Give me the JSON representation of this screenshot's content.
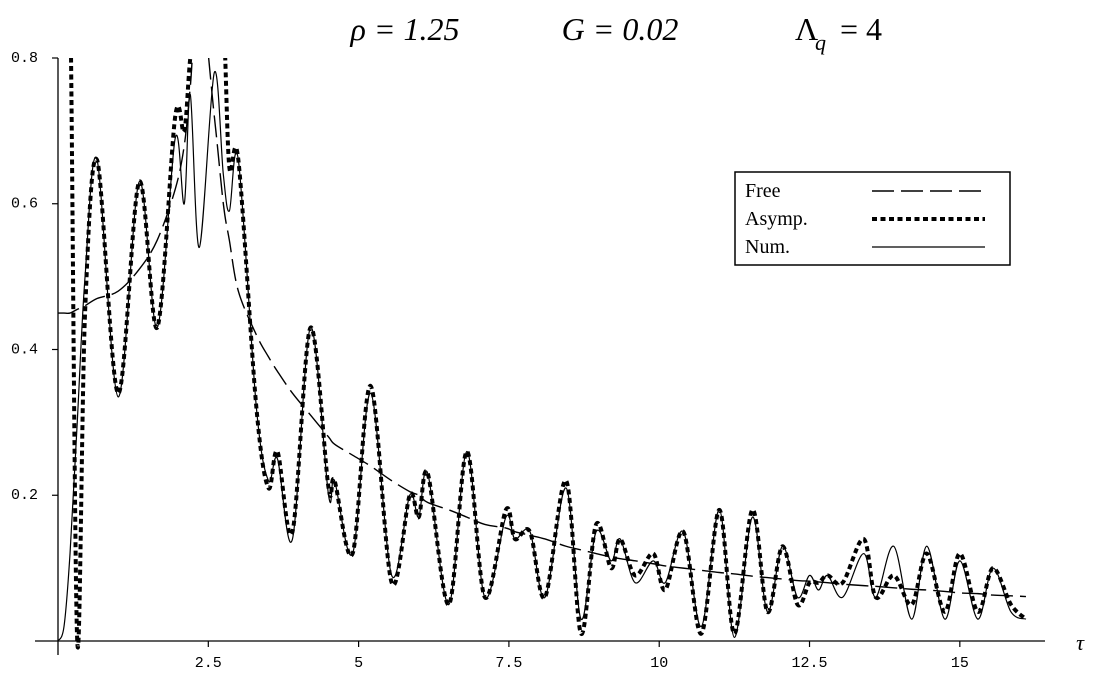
{
  "chart_data": {
    "type": "line",
    "title": {
      "rho": "ρ = 1.25",
      "G": "G = 0.02",
      "lambda": "Λ",
      "lambda_sub": "q",
      "lambda_val": "= 4"
    },
    "x_label": "τ",
    "x": [
      0,
      0.1,
      0.2,
      0.32,
      0.45,
      0.65,
      1.0,
      1.35,
      1.65,
      1.95,
      2.1,
      2.2,
      2.35,
      2.6,
      2.75,
      2.85,
      3.0,
      3.3,
      3.5,
      3.65,
      3.9,
      4.2,
      4.5,
      4.6,
      4.9,
      5.2,
      5.55,
      5.85,
      6.0,
      6.15,
      6.5,
      6.8,
      7.1,
      7.45,
      7.6,
      7.85,
      8.1,
      8.45,
      8.7,
      8.95,
      9.2,
      9.35,
      9.6,
      9.9,
      10.1,
      10.4,
      10.7,
      11.0,
      11.25,
      11.55,
      11.8,
      12.05,
      12.3,
      12.5,
      12.65,
      12.8,
      13.05,
      13.4,
      13.6,
      13.9,
      14.2,
      14.45,
      14.75,
      15.0,
      15.3,
      15.55,
      15.85,
      16.1
    ],
    "series": [
      {
        "name": "Free",
        "color": "#000000",
        "dash": "long-dash",
        "values": [
          0.45,
          0.45,
          0.45,
          0.455,
          0.46,
          0.47,
          0.48,
          0.51,
          0.55,
          0.62,
          0.68,
          0.76,
          0.9,
          0.72,
          0.6,
          0.55,
          0.48,
          0.42,
          0.39,
          0.37,
          0.34,
          0.31,
          0.28,
          0.27,
          0.255,
          0.24,
          0.22,
          0.205,
          0.2,
          0.19,
          0.18,
          0.17,
          0.16,
          0.155,
          0.15,
          0.145,
          0.14,
          0.13,
          0.125,
          0.12,
          0.115,
          0.113,
          0.11,
          0.106,
          0.103,
          0.1,
          0.097,
          0.094,
          0.092,
          0.089,
          0.087,
          0.085,
          0.083,
          0.082,
          0.081,
          0.08,
          0.078,
          0.076,
          0.075,
          0.073,
          0.071,
          0.07,
          0.068,
          0.066,
          0.065,
          0.063,
          0.062,
          0.061
        ]
      },
      {
        "name": "Asymp.",
        "color": "#000000",
        "dash": "dotted",
        "values": [
          null,
          0.9,
          0.9,
          0.0,
          0.45,
          0.66,
          0.34,
          0.63,
          0.43,
          0.72,
          0.7,
          0.8,
          0.9,
          0.85,
          0.85,
          0.65,
          0.66,
          0.32,
          0.21,
          0.26,
          0.15,
          0.43,
          0.21,
          0.22,
          0.12,
          0.35,
          0.08,
          0.2,
          0.17,
          0.23,
          0.05,
          0.26,
          0.06,
          0.18,
          0.14,
          0.15,
          0.06,
          0.22,
          0.01,
          0.16,
          0.1,
          0.14,
          0.09,
          0.12,
          0.07,
          0.15,
          0.01,
          0.18,
          0.01,
          0.18,
          0.04,
          0.13,
          0.05,
          0.08,
          0.08,
          0.09,
          0.08,
          0.14,
          0.06,
          0.09,
          0.05,
          0.12,
          0.04,
          0.12,
          0.04,
          0.1,
          0.05,
          0.03
        ]
      },
      {
        "name": "Num.",
        "color": "#000000",
        "dash": "solid",
        "values": [
          0,
          0.02,
          0.12,
          0.3,
          0.5,
          0.66,
          0.335,
          0.63,
          0.43,
          0.69,
          0.6,
          0.75,
          0.54,
          0.78,
          0.64,
          0.59,
          0.66,
          0.32,
          0.22,
          0.25,
          0.14,
          0.43,
          0.2,
          0.22,
          0.12,
          0.34,
          0.09,
          0.2,
          0.17,
          0.23,
          0.05,
          0.26,
          0.06,
          0.17,
          0.14,
          0.15,
          0.06,
          0.21,
          0.03,
          0.15,
          0.11,
          0.14,
          0.08,
          0.11,
          0.08,
          0.15,
          0.02,
          0.18,
          0.005,
          0.17,
          0.04,
          0.13,
          0.06,
          0.09,
          0.07,
          0.09,
          0.06,
          0.12,
          0.06,
          0.13,
          0.03,
          0.13,
          0.03,
          0.11,
          0.03,
          0.1,
          0.04,
          0.03
        ]
      }
    ],
    "xlim": [
      0,
      16.4
    ],
    "ylim": [
      0,
      0.8
    ],
    "xticks": [
      2.5,
      5,
      7.5,
      10,
      12.5,
      15
    ],
    "yticks": [
      0.2,
      0.4,
      0.6,
      0.8
    ],
    "grid": false,
    "legend": "upper-right"
  }
}
